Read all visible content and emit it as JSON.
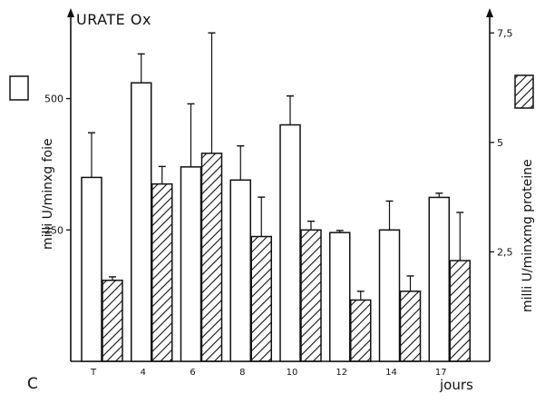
{
  "chart_data": {
    "type": "bar",
    "title": "URATE Ox",
    "panel_label": "C",
    "xlabel": "jours",
    "categories": [
      "T",
      "4",
      "6",
      "8",
      "10",
      "12",
      "14",
      "17"
    ],
    "ylabel_left": "milli U/minxg foie",
    "ylabel_right": "milli U/minxmg proteine",
    "left_ticks": [
      "250",
      "500"
    ],
    "right_ticks": [
      "2,5",
      "5",
      "7,5"
    ],
    "ylim_left": [
      0,
      660
    ],
    "ylim_right": [
      0,
      7.92
    ],
    "series": [
      {
        "name": "milli U/minxg foie",
        "axis": "left",
        "pattern": "open",
        "values": [
          350,
          530,
          370,
          345,
          450,
          245,
          250,
          312
        ],
        "errors": [
          85,
          55,
          120,
          65,
          55,
          4,
          55,
          8
        ]
      },
      {
        "name": "milli U/minxmg proteine",
        "axis": "right",
        "pattern": "hatched",
        "values": [
          1.85,
          4.05,
          4.75,
          2.85,
          3.0,
          1.4,
          1.6,
          2.3
        ],
        "errors": [
          0.08,
          0.4,
          2.75,
          0.9,
          0.2,
          0.2,
          0.35,
          1.1
        ]
      }
    ]
  }
}
